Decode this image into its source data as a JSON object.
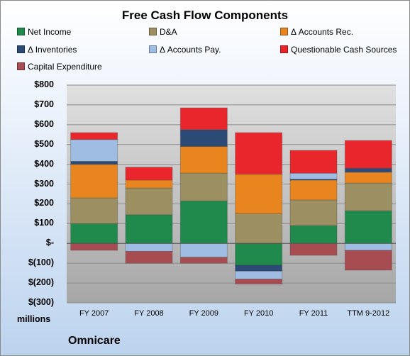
{
  "company": "Omnicare",
  "units_label": "millions",
  "chart_data": {
    "type": "bar",
    "stacked": true,
    "title": "Free Cash Flow Components",
    "categories": [
      "FY 2007",
      "FY 2008",
      "FY 2009",
      "FY 2010",
      "FY 2011",
      "TTM 9-2012"
    ],
    "ylim": [
      -300,
      800
    ],
    "yticks": [
      800,
      700,
      600,
      500,
      400,
      300,
      200,
      100,
      0,
      -100,
      -200,
      -300
    ],
    "ytick_labels": [
      "$800",
      "$700",
      "$600",
      "$500",
      "$400",
      "$300",
      "$200",
      "$100",
      "$-",
      "$(100)",
      "$(200)",
      "$(300)"
    ],
    "grid": true,
    "legend": "top",
    "series": [
      {
        "name": "Net Income",
        "color": "#1f8a4c",
        "values": [
          100,
          145,
          215,
          -110,
          90,
          165
        ]
      },
      {
        "name": "D&A",
        "color": "#9c9062",
        "values": [
          130,
          135,
          140,
          150,
          130,
          140
        ]
      },
      {
        "name": "Δ Accounts Rec.",
        "color": "#e8851e",
        "values": [
          170,
          40,
          135,
          200,
          100,
          55
        ]
      },
      {
        "name": "Δ Inventories",
        "color": "#2b4a75",
        "values": [
          15,
          0,
          85,
          -30,
          5,
          20
        ]
      },
      {
        "name": "Δ Accounts Pay.",
        "color": "#9fbde2",
        "values": [
          110,
          -40,
          -70,
          -40,
          30,
          -35
        ]
      },
      {
        "name": "Questionable Cash Sources",
        "color": "#e8262c",
        "values": [
          35,
          65,
          110,
          210,
          115,
          140
        ]
      },
      {
        "name": "Capital Expenditure",
        "color": "#a74d52",
        "values": [
          -35,
          -60,
          -30,
          -25,
          -60,
          -100
        ]
      }
    ]
  }
}
